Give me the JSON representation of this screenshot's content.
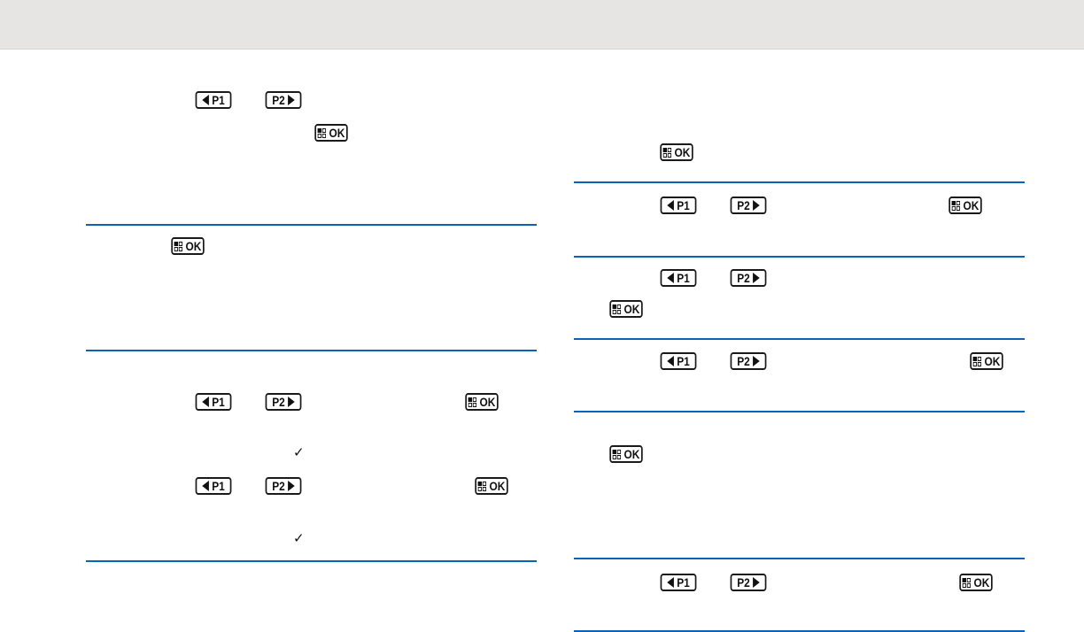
{
  "icons": {
    "p1_label": "P1",
    "p2_label": "P2",
    "ok_label": "OK",
    "check": "✓"
  },
  "colors": {
    "rule": "#0a63b8",
    "header": "#e6e5e3"
  }
}
